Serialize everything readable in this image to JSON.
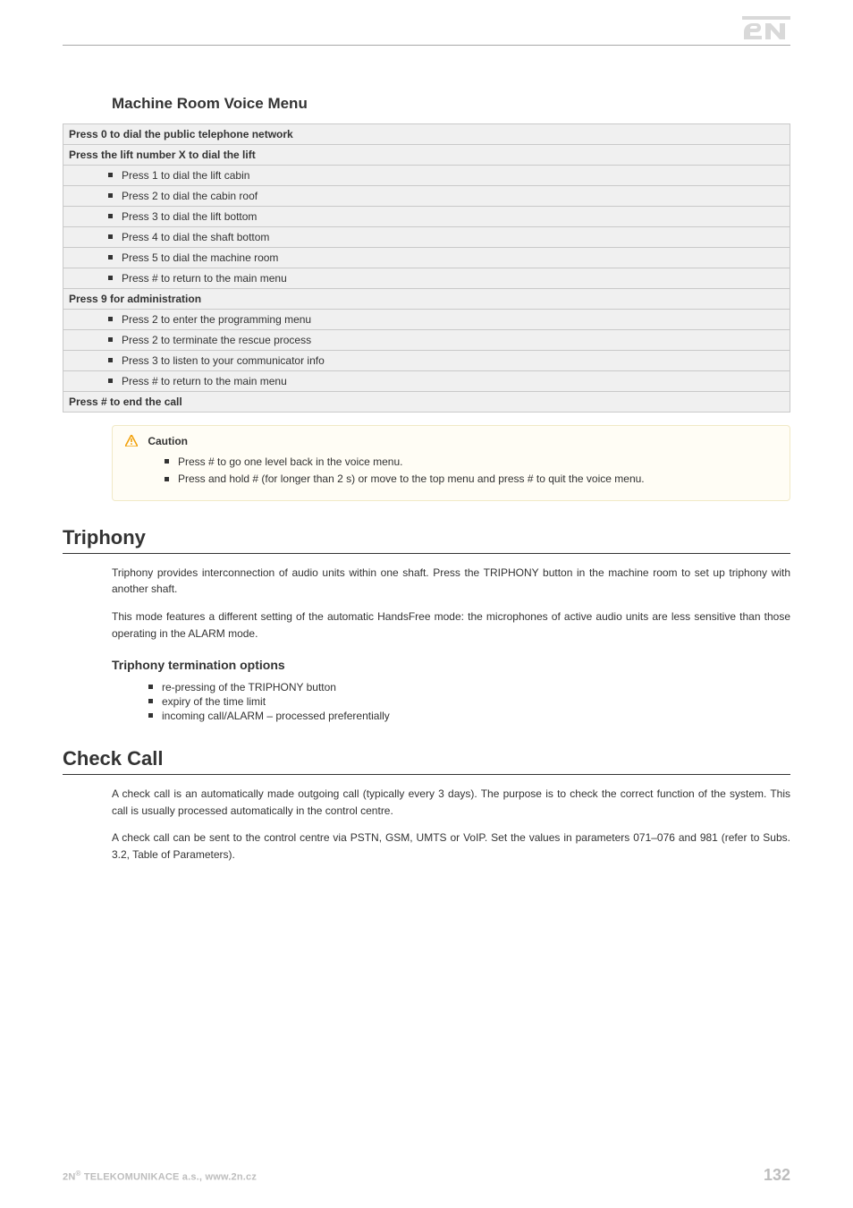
{
  "logo": {
    "fill": "#d9d9d9"
  },
  "section1": {
    "heading": "Machine Room Voice Menu"
  },
  "voice_menu": {
    "rows": [
      {
        "text": "Press 0 to dial the public telephone network",
        "bold": true,
        "indent": false
      },
      {
        "text": "Press the lift number X to dial the lift",
        "bold": true,
        "indent": false
      },
      {
        "text": "Press 1 to dial the lift cabin",
        "bold": false,
        "indent": true
      },
      {
        "text": "Press 2 to dial the cabin roof",
        "bold": false,
        "indent": true
      },
      {
        "text": "Press 3 to dial the lift bottom",
        "bold": false,
        "indent": true
      },
      {
        "text": "Press 4 to dial the shaft bottom",
        "bold": false,
        "indent": true
      },
      {
        "text": "Press 5 to dial the machine room",
        "bold": false,
        "indent": true
      },
      {
        "text": "Press # to return to the main menu",
        "bold": false,
        "indent": true
      },
      {
        "text": "Press 9 for administration",
        "bold": true,
        "indent": false
      },
      {
        "text": "Press 2 to enter the programming menu",
        "bold": false,
        "indent": true
      },
      {
        "text": "Press 2 to terminate the rescue process",
        "bold": false,
        "indent": true
      },
      {
        "text": "Press 3 to listen to your communicator info",
        "bold": false,
        "indent": true
      },
      {
        "text": "Press # to return to the main menu",
        "bold": false,
        "indent": true
      },
      {
        "text": "Press # to end the call",
        "bold": true,
        "indent": false
      }
    ],
    "border_color": "#c9c9c9",
    "bg_color": "#f0f0f0",
    "fontsize": 12
  },
  "caution": {
    "title": "Caution",
    "icon_color": "#f2a10a",
    "bg": "#fffdf5",
    "border": "#f1e9c6",
    "items": [
      "Press # to go one level back in the voice menu.",
      "Press and hold # (for longer than 2 s) or move to the top menu and press # to quit the voice menu."
    ]
  },
  "triphony": {
    "heading": "Triphony",
    "p1": "Triphony provides interconnection of audio units within one shaft. Press the TRIPHONY button in the machine room to set up triphony with another shaft.",
    "p2": "This mode features a different setting of the automatic HandsFree mode: the microphones of active audio units are less sensitive than those operating in the ALARM mode.",
    "sub": "Triphony termination options",
    "bullets": [
      "re-pressing of the TRIPHONY button",
      "expiry of the time limit",
      "incoming call/ALARM – processed preferentially"
    ]
  },
  "checkcall": {
    "heading": "Check Call",
    "p1": "A check call is an automatically made outgoing call (typically every 3 days). The purpose is to check the correct function of the system. This call is usually processed automatically in the control centre.",
    "p2": "A check call can be sent to the control centre via PSTN, GSM, UMTS or VoIP. Set the values in parameters 071–076 and 981 (refer to Subs. 3.2, Table of Parameters)."
  },
  "footer": {
    "left_prefix": "2N",
    "left_sup": "®",
    "left_rest": " TELEKOMUNIKACE a.s., www.2n.cz",
    "page": "132",
    "color": "#bdbdbd"
  }
}
